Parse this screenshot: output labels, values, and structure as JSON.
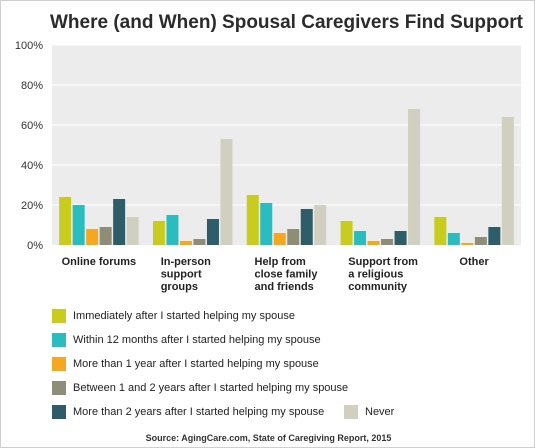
{
  "chart_data": {
    "type": "bar",
    "title": "Where (and When) Spousal Caregivers Find Support",
    "source": "Source: AgingCare.com, State of Caregiving Report, 2015",
    "ylim": [
      0,
      100
    ],
    "y_ticks": [
      "0%",
      "20%",
      "40%",
      "60%",
      "80%",
      "100%"
    ],
    "y_tick_values": [
      0,
      20,
      40,
      60,
      80,
      100
    ],
    "grid": true,
    "legend_position": "bottom",
    "categories": [
      [
        "Online forums"
      ],
      [
        "In-person",
        "support",
        "groups"
      ],
      [
        "Help from",
        "close family",
        "and friends"
      ],
      [
        "Support from",
        "a religious",
        "community"
      ],
      [
        "Other"
      ]
    ],
    "series": [
      {
        "name": "Immediately after I started helping my  spouse",
        "color": "#c8cc1e",
        "values": [
          24,
          12,
          25,
          12,
          14
        ]
      },
      {
        "name": "Within 12 months after I started helping my spouse",
        "color": "#2bbcc0",
        "values": [
          20,
          15,
          21,
          7,
          6
        ]
      },
      {
        "name": "More than 1 year after I started helping my spouse",
        "color": "#f5a81f",
        "values": [
          8,
          2,
          6,
          2,
          1
        ]
      },
      {
        "name": "Between 1 and 2 years after I started helping my spouse",
        "color": "#8e8e78",
        "values": [
          9,
          3,
          8,
          3,
          4
        ]
      },
      {
        "name": "More than 2 years after I started helping my spouse",
        "color": "#2e5c68",
        "values": [
          23,
          13,
          18,
          7,
          9
        ]
      },
      {
        "name": "Never",
        "color": "#d1d0c0",
        "values": [
          14,
          53,
          20,
          68,
          64
        ]
      }
    ],
    "plot_background": "#ececec",
    "grid_color": "#ffffff"
  }
}
